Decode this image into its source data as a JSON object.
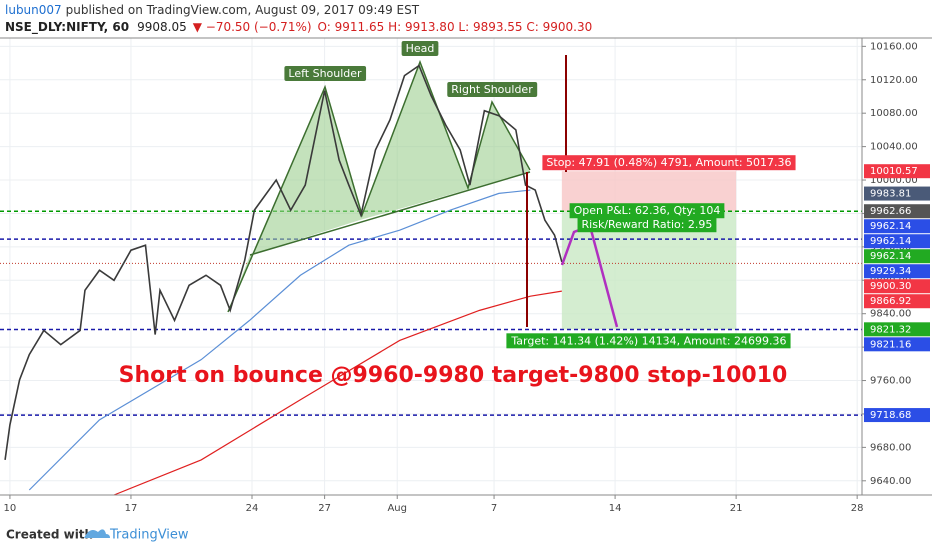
{
  "chart_data": {
    "type": "line",
    "title": "Short on bounce @9960-9980 target-9800 stop-10010",
    "header": {
      "author": "lubun007",
      "published": "published on TradingView.com, August 09, 2017 09:49 EST",
      "symbol": "NSE_DLY:NIFTY, 60",
      "last": "9908.05",
      "change": "▼ −70.50 (−0.71%)",
      "ohlc": "O: 9911.65 H: 9913.80 L: 9893.55 C: 9900.30"
    },
    "footer": {
      "created": "Created with",
      "brand": "TradingView"
    },
    "xlim": [
      -0.41,
      35.2
    ],
    "xticks": [
      {
        "value": 0,
        "label": "10"
      },
      {
        "value": 5,
        "label": "17"
      },
      {
        "value": 10,
        "label": "24"
      },
      {
        "value": 13,
        "label": "27"
      },
      {
        "value": 16,
        "label": "Aug"
      },
      {
        "value": 20,
        "label": "7"
      },
      {
        "value": 25,
        "label": "14"
      },
      {
        "value": 30,
        "label": "21"
      },
      {
        "value": 35,
        "label": "28"
      }
    ],
    "ylim": [
      9623,
      10170
    ],
    "yticks": [
      {
        "value": 9640,
        "label": "9640.00"
      },
      {
        "value": 9680,
        "label": "9680.00"
      },
      {
        "value": 9720,
        "label": "9720.00"
      },
      {
        "value": 9760,
        "label": "9760.00"
      },
      {
        "value": 9800,
        "label": "9800.00"
      },
      {
        "value": 9840,
        "label": "9840.00"
      },
      {
        "value": 9880,
        "label": "9880.00"
      },
      {
        "value": 9920,
        "label": "9920.00"
      },
      {
        "value": 9960,
        "label": "9960.00"
      },
      {
        "value": 10000,
        "label": "10000.00"
      },
      {
        "value": 10040,
        "label": "10040.00"
      },
      {
        "value": 10080,
        "label": "10080.00"
      },
      {
        "value": 10120,
        "label": "10120.00"
      },
      {
        "value": 10160,
        "label": "10160.00"
      }
    ],
    "grid": true,
    "series": [
      {
        "color": "#3a3a3a",
        "x": [
          -0.2,
          0,
          0.4,
          0.8,
          1.4,
          2.1,
          2.9,
          3.1,
          3.7,
          4.3,
          5.0,
          5.6,
          6.0,
          6.2,
          6.8,
          7.4,
          8.1,
          8.7,
          9.1,
          9.7,
          10.1,
          11.0,
          11.6,
          12.2,
          13.0,
          13.6,
          14.0,
          14.5,
          15.1,
          15.7,
          16.3,
          16.9,
          17.4,
          18.0,
          18.6,
          19.0,
          19.6,
          20.2,
          20.9,
          21.3,
          21.7,
          22.1,
          22.5,
          22.8
        ],
        "values": [
          9665,
          9707,
          9761,
          9791,
          9820,
          9803,
          9820,
          9868,
          9892,
          9880,
          9916,
          9922,
          9815,
          9868,
          9832,
          9874,
          9886,
          9874,
          9844,
          9904,
          9964,
          10000,
          9964,
          9994,
          10107,
          10024,
          9994,
          9958,
          10036,
          10072,
          10125,
          10137,
          10101,
          10066,
          10036,
          9994,
          10083,
          10077,
          10060,
          9994,
          9988,
          9952,
          9934,
          9902
        ]
      },
      {
        "color": "#5b8fd6",
        "x": [
          0.8,
          3.7,
          7.9,
          9.9,
          12.0,
          14.0,
          16.1,
          18.2,
          20.2,
          21.5
        ],
        "values": [
          9629,
          9713,
          9785,
          9832,
          9886,
          9922,
          9940,
          9964,
          9984,
          9988
        ]
      },
      {
        "color": "#e02020",
        "x": [
          4.3,
          7.9,
          12.0,
          16.1,
          19.4,
          21.5,
          22.8
        ],
        "values": [
          9623,
          9665,
          9737,
          9808,
          9844,
          9861,
          9867
        ]
      }
    ],
    "levels": [
      {
        "value": 9962.66,
        "color": "#009900",
        "style": "dashed"
      },
      {
        "value": 9929.34,
        "color": "#1a1aaa",
        "style": "dashed"
      },
      {
        "value": 9821.16,
        "color": "#1a1aaa",
        "style": "dashed"
      },
      {
        "value": 9718.68,
        "color": "#1a1aaa",
        "style": "dashed"
      },
      {
        "value": 9900.3,
        "color": "#c0392b",
        "style": "dotted"
      }
    ],
    "price_tags": [
      {
        "value": 10010.57,
        "color": "#f23645"
      },
      {
        "value": 9983.81,
        "color": "#4a5a78"
      },
      {
        "value": 9962.66,
        "color": "#555555"
      },
      {
        "value": 9962.14,
        "color": "#2b4ee6"
      },
      {
        "value": 9962.14,
        "color": "#2b4ee6"
      },
      {
        "value": 9962.14,
        "color": "#22aa22"
      },
      {
        "value": 9929.34,
        "color": "#2b4ee6"
      },
      {
        "value": 9900.3,
        "label": "9900.30",
        "color": "#f23645"
      },
      {
        "value": 9866.92,
        "color": "#f23645"
      },
      {
        "value": 9821.16,
        "color": "#2b4ee6"
      },
      {
        "value": 9821.32,
        "color": "#22aa22"
      },
      {
        "value": 9718.68,
        "color": "#2b4ee6"
      }
    ],
    "pattern_labels": [
      "Left Shoulder",
      "Head",
      "Right Shoulder"
    ],
    "position": {
      "x": [
        22.8,
        30
      ],
      "entry": 9962.66,
      "stop": 10010.57,
      "target": 9821.32,
      "stop_label": "Stop: 47.91 (0.48%) 4791, Amount: 5017.36",
      "pnl_label": "Open P&L: 62.36, Qty: 104",
      "rr_label": "Risk/Reward Ratio: 2.95",
      "target_label": "Target: 141.34 (1.42%) 14134, Amount: 24699.36"
    }
  }
}
